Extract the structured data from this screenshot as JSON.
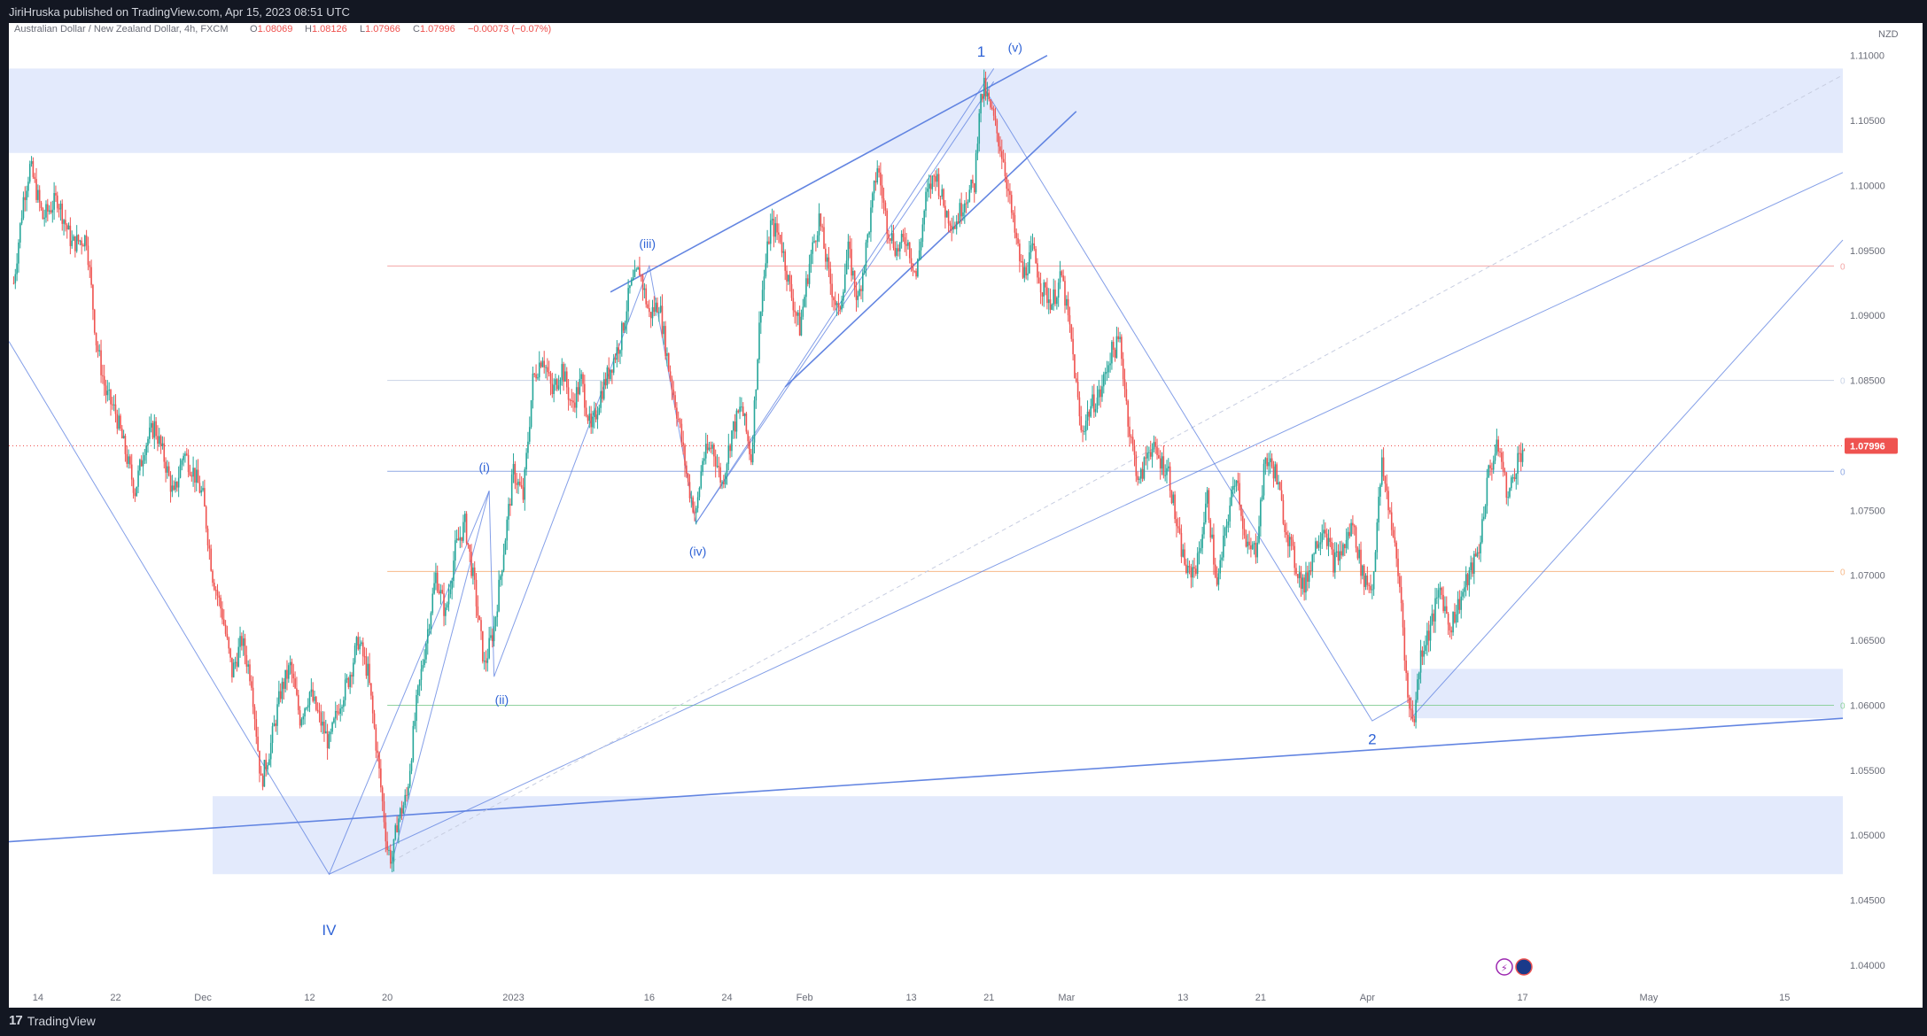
{
  "header": {
    "published": "JiriHruska published on TradingView.com, Apr 15, 2023 08:51 UTC"
  },
  "legend": {
    "symbol": "Australian Dollar / New Zealand Dollar, 4h, FXCM",
    "o_label": "O",
    "o_value": "1.08069",
    "h_label": "H",
    "h_value": "1.08126",
    "l_label": "L",
    "l_value": "1.07966",
    "c_label": "C",
    "c_value": "1.07996",
    "change": "−0.00073 (−0.07%)"
  },
  "footer": {
    "brand": "TradingView",
    "logo_glyph": "17"
  },
  "colors": {
    "up": "#26a69a",
    "down": "#ef5350",
    "line": "#5b7fe0",
    "zone": "#e3eafc",
    "axis_text": "#6a6d78",
    "price_badge": "#ef5350"
  },
  "chart_data": {
    "type": "candlestick",
    "instrument": "AUDNZD",
    "timeframe": "4h",
    "currency": "NZD",
    "current_price": 1.07996,
    "current_price_label": "1.07996",
    "ylim": [
      1.0385,
      1.1125
    ],
    "y_ticks": [
      1.11,
      1.105,
      1.1,
      1.095,
      1.09,
      1.085,
      1.08,
      1.075,
      1.07,
      1.065,
      1.06,
      1.055,
      1.05,
      1.045,
      1.04
    ],
    "y_tick_labels": [
      "1.11000",
      "1.10500",
      "1.10000",
      "1.09500",
      "1.09000",
      "1.08500",
      "1.08000",
      "1.07500",
      "1.07000",
      "1.06500",
      "1.06000",
      "1.05500",
      "1.05000",
      "1.04500",
      "1.04000"
    ],
    "x_ticks": [
      {
        "label": "14",
        "t": 0.0
      },
      {
        "label": "22",
        "t": 8.0
      },
      {
        "label": "Dec",
        "t": 17.0
      },
      {
        "label": "12",
        "t": 28.0
      },
      {
        "label": "20",
        "t": 36.0
      },
      {
        "label": "2023",
        "t": 49.0
      },
      {
        "label": "16",
        "t": 63.0
      },
      {
        "label": "24",
        "t": 71.0
      },
      {
        "label": "Feb",
        "t": 79.0
      },
      {
        "label": "13",
        "t": 90.0
      },
      {
        "label": "21",
        "t": 98.0
      },
      {
        "label": "Mar",
        "t": 106.0
      },
      {
        "label": "13",
        "t": 118.0
      },
      {
        "label": "21",
        "t": 126.0
      },
      {
        "label": "Apr",
        "t": 137.0
      },
      {
        "label": "17",
        "t": 153.0
      },
      {
        "label": "May",
        "t": 166.0
      },
      {
        "label": "15",
        "t": 180.0
      }
    ],
    "price_path": [
      [
        -2.5,
        1.0925
      ],
      [
        -1.5,
        1.099
      ],
      [
        -0.8,
        1.1015
      ],
      [
        0.5,
        1.0975
      ],
      [
        2.0,
        1.099
      ],
      [
        3.5,
        1.0955
      ],
      [
        5.0,
        1.096
      ],
      [
        6.0,
        1.088
      ],
      [
        7.0,
        1.084
      ],
      [
        8.0,
        1.0825
      ],
      [
        9.0,
        1.0795
      ],
      [
        10.0,
        1.0765
      ],
      [
        11.0,
        1.08
      ],
      [
        12.0,
        1.0815
      ],
      [
        13.0,
        1.079
      ],
      [
        14.0,
        1.076
      ],
      [
        15.0,
        1.0795
      ],
      [
        16.0,
        1.078
      ],
      [
        17.0,
        1.076
      ],
      [
        18.0,
        1.07
      ],
      [
        19.0,
        1.067
      ],
      [
        20.0,
        1.0625
      ],
      [
        21.0,
        1.065
      ],
      [
        22.0,
        1.062
      ],
      [
        23.0,
        1.054
      ],
      [
        24.0,
        1.057
      ],
      [
        25.0,
        1.061
      ],
      [
        26.0,
        1.063
      ],
      [
        27.0,
        1.059
      ],
      [
        28.0,
        1.061
      ],
      [
        29.0,
        1.059
      ],
      [
        30.0,
        1.057
      ],
      [
        31.0,
        1.06
      ],
      [
        32.0,
        1.062
      ],
      [
        33.0,
        1.065
      ],
      [
        34.0,
        1.0625
      ],
      [
        35.0,
        1.056
      ],
      [
        36.0,
        1.049
      ],
      [
        36.5,
        1.048
      ],
      [
        37.0,
        1.051
      ],
      [
        38.0,
        1.053
      ],
      [
        39.0,
        1.06
      ],
      [
        40.0,
        1.065
      ],
      [
        41.0,
        1.07
      ],
      [
        42.0,
        1.067
      ],
      [
        43.0,
        1.072
      ],
      [
        44.0,
        1.074
      ],
      [
        45.0,
        1.069
      ],
      [
        46.0,
        1.063
      ],
      [
        47.0,
        1.066
      ],
      [
        48.0,
        1.072
      ],
      [
        49.0,
        1.078
      ],
      [
        50.0,
        1.076
      ],
      [
        51.0,
        1.085
      ],
      [
        52.0,
        1.087
      ],
      [
        53.0,
        1.084
      ],
      [
        54.0,
        1.086
      ],
      [
        55.0,
        1.083
      ],
      [
        56.0,
        1.085
      ],
      [
        57.0,
        1.081
      ],
      [
        58.0,
        1.084
      ],
      [
        59.0,
        1.086
      ],
      [
        60.0,
        1.088
      ],
      [
        61.0,
        1.092
      ],
      [
        62.0,
        1.0935
      ],
      [
        63.0,
        1.09
      ],
      [
        64.0,
        1.091
      ],
      [
        65.0,
        1.086
      ],
      [
        66.0,
        1.082
      ],
      [
        67.0,
        1.077
      ],
      [
        67.8,
        1.0745
      ],
      [
        68.5,
        1.079
      ],
      [
        69.5,
        1.08
      ],
      [
        70.5,
        1.077
      ],
      [
        71.5,
        1.081
      ],
      [
        72.5,
        1.083
      ],
      [
        73.5,
        1.079
      ],
      [
        74.5,
        1.091
      ],
      [
        75.5,
        1.097
      ],
      [
        76.5,
        1.096
      ],
      [
        77.5,
        1.092
      ],
      [
        78.5,
        1.089
      ],
      [
        79.5,
        1.094
      ],
      [
        80.5,
        1.0975
      ],
      [
        81.5,
        1.093
      ],
      [
        82.5,
        1.09
      ],
      [
        83.5,
        1.095
      ],
      [
        84.5,
        1.091
      ],
      [
        85.5,
        1.096
      ],
      [
        86.5,
        1.1015
      ],
      [
        87.5,
        1.097
      ],
      [
        88.5,
        1.095
      ],
      [
        89.5,
        1.096
      ],
      [
        90.5,
        1.093
      ],
      [
        91.5,
        1.099
      ],
      [
        92.5,
        1.101
      ],
      [
        93.5,
        1.098
      ],
      [
        94.5,
        1.097
      ],
      [
        95.5,
        1.099
      ],
      [
        96.5,
        1.1
      ],
      [
        97.0,
        1.106
      ],
      [
        97.5,
        1.1075
      ],
      [
        98.5,
        1.105
      ],
      [
        99.5,
        1.102
      ],
      [
        100.5,
        1.097
      ],
      [
        101.5,
        1.093
      ],
      [
        102.5,
        1.095
      ],
      [
        103.5,
        1.092
      ],
      [
        104.5,
        1.091
      ],
      [
        105.5,
        1.093
      ],
      [
        106.5,
        1.088
      ],
      [
        107.5,
        1.081
      ],
      [
        108.5,
        1.083
      ],
      [
        109.5,
        1.084
      ],
      [
        110.5,
        1.087
      ],
      [
        111.5,
        1.088
      ],
      [
        112.5,
        1.081
      ],
      [
        113.5,
        1.077
      ],
      [
        114.5,
        1.08
      ],
      [
        115.5,
        1.079
      ],
      [
        116.5,
        1.078
      ],
      [
        117.5,
        1.073
      ],
      [
        118.5,
        1.07
      ],
      [
        119.5,
        1.071
      ],
      [
        120.5,
        1.076
      ],
      [
        121.5,
        1.069
      ],
      [
        122.5,
        1.074
      ],
      [
        123.5,
        1.078
      ],
      [
        124.5,
        1.072
      ],
      [
        125.5,
        1.072
      ],
      [
        126.5,
        1.079
      ],
      [
        127.5,
        1.078
      ],
      [
        128.5,
        1.074
      ],
      [
        129.5,
        1.071
      ],
      [
        130.5,
        1.069
      ],
      [
        131.5,
        1.072
      ],
      [
        132.5,
        1.074
      ],
      [
        133.5,
        1.071
      ],
      [
        134.5,
        1.072
      ],
      [
        135.5,
        1.074
      ],
      [
        136.5,
        1.07
      ],
      [
        137.5,
        1.069
      ],
      [
        138.0,
        1.074
      ],
      [
        138.5,
        1.0785
      ],
      [
        139.5,
        1.074
      ],
      [
        140.5,
        1.068
      ],
      [
        141.2,
        1.06
      ],
      [
        141.8,
        1.059
      ],
      [
        142.5,
        1.064
      ],
      [
        143.5,
        1.066
      ],
      [
        144.5,
        1.069
      ],
      [
        145.5,
        1.066
      ],
      [
        146.5,
        1.068
      ],
      [
        147.5,
        1.07
      ],
      [
        148.5,
        1.072
      ],
      [
        149.5,
        1.078
      ],
      [
        150.5,
        1.08
      ],
      [
        151.5,
        1.076
      ],
      [
        152.5,
        1.079
      ],
      [
        153.2,
        1.07996
      ]
    ],
    "zones": [
      {
        "t1": -3.0,
        "t2": 186.0,
        "p1": 1.1025,
        "p2": 1.109
      },
      {
        "t1": 18.0,
        "t2": 186.0,
        "p1": 1.047,
        "p2": 1.053
      },
      {
        "t1": 141.5,
        "t2": 186.0,
        "p1": 1.059,
        "p2": 1.0628
      }
    ],
    "horizontal_levels": [
      {
        "price": 1.0938,
        "t1": 36.0,
        "color": "#f3a6a6",
        "label": "0"
      },
      {
        "price": 1.085,
        "t1": 36.0,
        "color": "#c9d3e6",
        "label": "0"
      },
      {
        "price": 1.078,
        "t1": 36.0,
        "color": "#8fa8e3",
        "label": "0"
      },
      {
        "price": 1.0703,
        "t1": 36.0,
        "color": "#f7b98a",
        "label": "0"
      },
      {
        "price": 1.06,
        "t1": 36.0,
        "color": "#8fd19e",
        "label": "0"
      }
    ],
    "trend_lines": [
      {
        "t1": -3.0,
        "p1": 1.0495,
        "t2": 186.0,
        "p2": 1.059,
        "w": 1.6
      },
      {
        "t1": 59.0,
        "p1": 1.0918,
        "t2": 104.0,
        "p2": 1.11,
        "w": 1.6
      },
      {
        "t1": 77.0,
        "p1": 1.0845,
        "t2": 107.0,
        "p2": 1.1057,
        "w": 1.6
      },
      {
        "t1": 30.0,
        "p1": 1.047,
        "t2": 186.0,
        "p2": 1.101,
        "w": 1.0
      },
      {
        "t1": 141.5,
        "p1": 1.059,
        "t2": 186.0,
        "p2": 1.0958,
        "w": 1.0
      }
    ],
    "dashed_lines": [
      {
        "t1": 36.5,
        "p1": 1.048,
        "t2": 186.0,
        "p2": 1.1085
      }
    ],
    "wave_lines": [
      [
        [
          -3.0,
          1.088
        ],
        [
          30.0,
          1.047
        ],
        [
          46.5,
          1.0765
        ],
        [
          47.0,
          1.0622
        ],
        [
          63.0,
          1.0938
        ],
        [
          67.8,
          1.074
        ],
        [
          98.5,
          1.109
        ]
      ],
      [
        [
          36.5,
          1.048
        ],
        [
          46.5,
          1.0765
        ]
      ],
      [
        [
          67.8,
          1.074
        ],
        [
          98.5,
          1.108
        ]
      ],
      [
        [
          97.5,
          1.1075
        ],
        [
          137.5,
          1.0588
        ],
        [
          141.5,
          1.0605
        ]
      ]
    ],
    "annotations": [
      {
        "text": "IV",
        "t": 30.0,
        "p": 1.0423
      },
      {
        "text": "(i)",
        "t": 46.0,
        "p": 1.078
      },
      {
        "text": "(ii)",
        "t": 47.8,
        "p": 1.0601
      },
      {
        "text": "(iii)",
        "t": 62.8,
        "p": 1.0952
      },
      {
        "text": "(iv)",
        "t": 68.0,
        "p": 1.0715
      },
      {
        "text": "1",
        "t": 97.2,
        "p": 1.1099
      },
      {
        "text": "(v)",
        "t": 100.7,
        "p": 1.1103
      },
      {
        "text": "2",
        "t": 137.5,
        "p": 1.057
      }
    ],
    "grid": false
  }
}
